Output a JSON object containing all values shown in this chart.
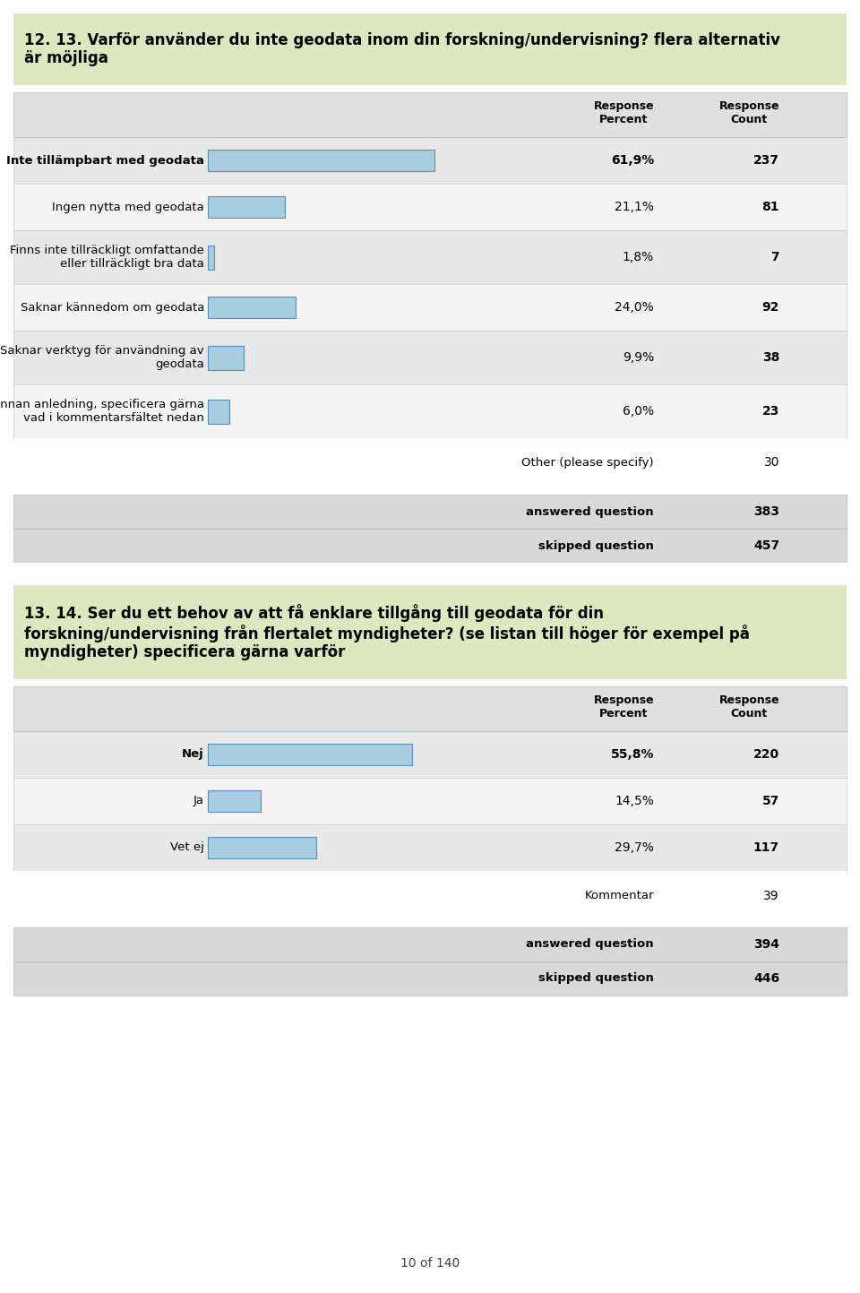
{
  "page_bg": "#ffffff",
  "section1": {
    "title_line1": "12. 13. Varför använder du inte geodata inom din forskning/undervisning? flera alternativ",
    "title_line2": "är möjliga",
    "title_bg": "#dde8c0",
    "rows": [
      {
        "label": "Inte tillämpbart med geodata",
        "pct": 61.9,
        "pct_str": "61,9%",
        "count": "237",
        "bg": "#e8e8e8",
        "bold": true
      },
      {
        "label": "Ingen nytta med geodata",
        "pct": 21.1,
        "pct_str": "21,1%",
        "count": "81",
        "bg": "#f5f5f5",
        "bold": false
      },
      {
        "label": "Finns inte tillräckligt omfattande\neller tillräckligt bra data",
        "pct": 1.8,
        "pct_str": "1,8%",
        "count": "7",
        "bg": "#e8e8e8",
        "bold": false
      },
      {
        "label": "Saknar kännedom om geodata",
        "pct": 24.0,
        "pct_str": "24,0%",
        "count": "92",
        "bg": "#f5f5f5",
        "bold": false
      },
      {
        "label": "Saknar verktyg för användning av\ngeodata",
        "pct": 9.9,
        "pct_str": "9,9%",
        "count": "38",
        "bg": "#e8e8e8",
        "bold": false
      },
      {
        "label": "Annan anledning, specificera gärna\nvad i kommentarsfältet nedan",
        "pct": 6.0,
        "pct_str": "6,0%",
        "count": "23",
        "bg": "#f5f5f5",
        "bold": false
      }
    ],
    "other_label": "Other (please specify)",
    "other_count": "30",
    "answered_label": "answered question",
    "answered_count": "383",
    "skipped_label": "skipped question",
    "skipped_count": "457"
  },
  "section2": {
    "title_line1": "13. 14. Ser du ett behov av att få enklare tillgång till geodata för din",
    "title_line2": "forskning/undervisning från flertalet myndigheter? (se listan till höger för exempel på",
    "title_line3": "myndigheter) specificera gärna varför",
    "title_bg": "#dde8c0",
    "rows": [
      {
        "label": "Nej",
        "pct": 55.8,
        "pct_str": "55,8%",
        "count": "220",
        "bg": "#e8e8e8",
        "bold": true
      },
      {
        "label": "Ja",
        "pct": 14.5,
        "pct_str": "14,5%",
        "count": "57",
        "bg": "#f5f5f5",
        "bold": false
      },
      {
        "label": "Vet ej",
        "pct": 29.7,
        "pct_str": "29,7%",
        "count": "117",
        "bg": "#e8e8e8",
        "bold": false
      }
    ],
    "other_label": "Kommentar",
    "other_count": "39",
    "answered_label": "answered question",
    "answered_count": "394",
    "skipped_label": "skipped question",
    "skipped_count": "446"
  },
  "bar_fill": "#a8cce0",
  "bar_edge": "#5a90b8",
  "header_bg": "#e0e0e0",
  "answered_bg": "#d8d8d8",
  "max_pct": 100.0,
  "footer": "10 of 140"
}
